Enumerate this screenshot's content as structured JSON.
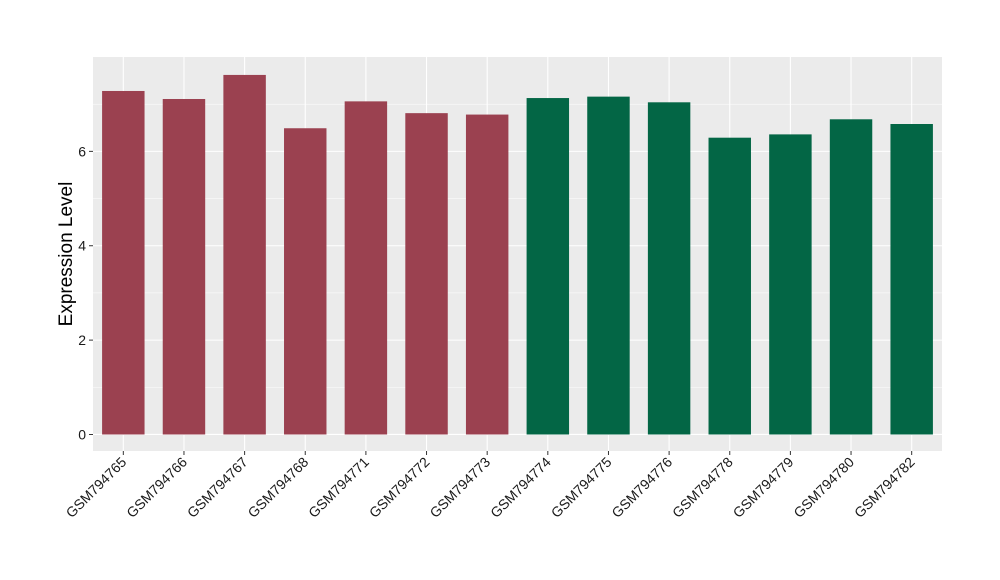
{
  "chart_data": {
    "type": "bar",
    "title": "",
    "xlabel": "",
    "ylabel": "Expression Level",
    "ylim": [
      -0.35,
      8.0
    ],
    "yticks": [
      0,
      2,
      4,
      6
    ],
    "grid": true,
    "legend": "none",
    "categories": [
      "GSM794765",
      "GSM794766",
      "GSM794767",
      "GSM794768",
      "GSM794771",
      "GSM794772",
      "GSM794773",
      "GSM794774",
      "GSM794775",
      "GSM794776",
      "GSM794778",
      "GSM794779",
      "GSM794780",
      "GSM794782"
    ],
    "values": [
      7.28,
      7.11,
      7.62,
      6.49,
      7.06,
      6.81,
      6.78,
      7.13,
      7.16,
      7.04,
      6.29,
      6.36,
      6.68,
      6.58
    ],
    "bar_colors": [
      "#9b4150",
      "#9b4150",
      "#9b4150",
      "#9b4150",
      "#9b4150",
      "#9b4150",
      "#9b4150",
      "#036645",
      "#036645",
      "#036645",
      "#036645",
      "#036645",
      "#036645",
      "#036645"
    ],
    "panel_background": "#ebebeb",
    "grid_color": "#ffffff"
  }
}
